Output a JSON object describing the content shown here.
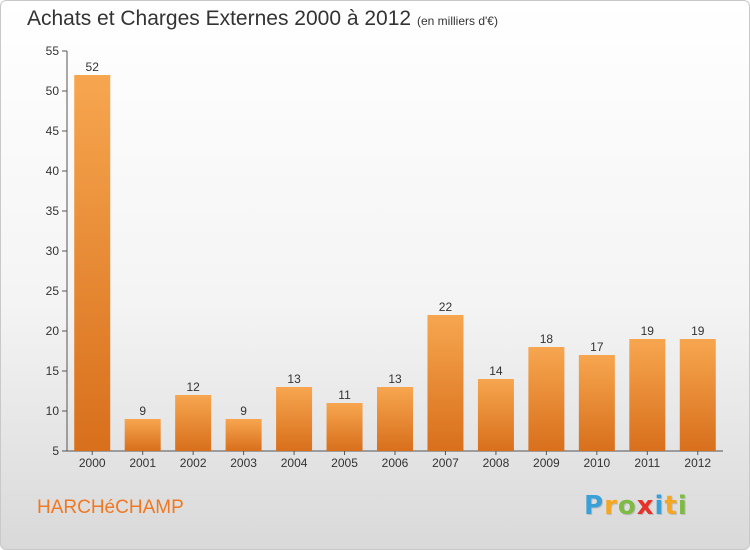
{
  "header": {
    "title": "Achats et Charges Externes 2000 à 2012",
    "unit": "(en milliers d'€)"
  },
  "footer": {
    "commune": "HARCHéCHAMP",
    "logo_letters": [
      "P",
      "r",
      "o",
      "x",
      "i",
      "t",
      "i"
    ],
    "logo_colors": [
      "#3aa0d8",
      "#f5a623",
      "#7dbb42",
      "#e5332a",
      "#3aa0d8",
      "#f5a623",
      "#7dbb42"
    ]
  },
  "colors": {
    "bar_light": "#f7a64f",
    "bar_dark": "#d86f1c",
    "axis": "#555555",
    "grid": "#dddddd"
  },
  "chart_data": {
    "type": "bar",
    "title": "Achats et Charges Externes 2000 à 2012",
    "xlabel": "",
    "ylabel": "",
    "categories": [
      "2000",
      "2001",
      "2002",
      "2003",
      "2004",
      "2005",
      "2006",
      "2007",
      "2008",
      "2009",
      "2010",
      "2011",
      "2012"
    ],
    "values": [
      52,
      9,
      12,
      9,
      13,
      11,
      13,
      22,
      14,
      18,
      17,
      19,
      19
    ],
    "ylim": [
      5,
      55
    ],
    "yticks": [
      5,
      10,
      15,
      20,
      25,
      30,
      35,
      40,
      45,
      50,
      55
    ],
    "grid": false,
    "legend": "none"
  }
}
